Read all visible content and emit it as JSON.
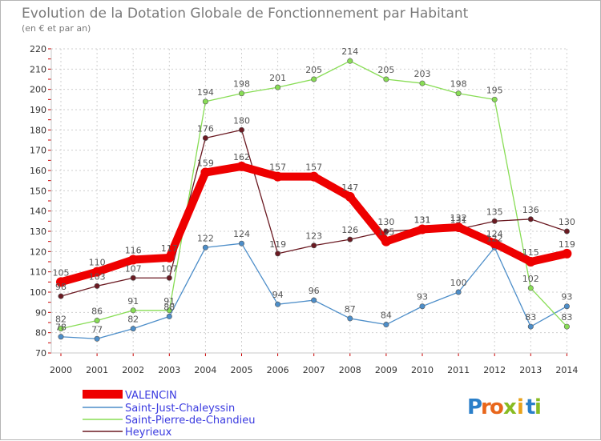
{
  "chart_data": {
    "type": "line",
    "title": "Evolution de la Dotation Globale de Fonctionnement par Habitant",
    "subtitle": "(en € et par an)",
    "x": [
      "2000",
      "2001",
      "2002",
      "2003",
      "2004",
      "2005",
      "2006",
      "2007",
      "2008",
      "2009",
      "2010",
      "2011",
      "2012",
      "2013",
      "2014"
    ],
    "ylim": [
      70,
      220
    ],
    "yticks": [
      70,
      80,
      90,
      100,
      110,
      120,
      130,
      140,
      150,
      160,
      170,
      180,
      190,
      200,
      210,
      220
    ],
    "grid": true,
    "legend_position": "bottom-left",
    "series": [
      {
        "name": "VALENCIN",
        "color": "#ee0000",
        "values": [
          105,
          110,
          116,
          117,
          159,
          162,
          157,
          157,
          147,
          125,
          131,
          132,
          124,
          115,
          119
        ],
        "labels": [
          "105",
          "110",
          "116",
          "117",
          "159",
          "162",
          "157",
          "157",
          "147",
          "125",
          "131",
          "132",
          "124",
          "115",
          "119"
        ]
      },
      {
        "name": "Saint-Just-Chaleyssin",
        "color": "#4d8ec9",
        "values": [
          78,
          77,
          82,
          88,
          122,
          124,
          94,
          96,
          87,
          84,
          93,
          100,
          122,
          83,
          93
        ],
        "labels": [
          "78",
          "77",
          "82",
          "88",
          "122",
          "124",
          "94",
          "96",
          "87",
          "84",
          "93",
          "100",
          "122",
          "83",
          "93"
        ]
      },
      {
        "name": "Saint-Pierre-de-Chandieu",
        "color": "#88dd55",
        "values": [
          82,
          86,
          91,
          91,
          194,
          198,
          201,
          205,
          214,
          205,
          203,
          198,
          195,
          102,
          83
        ],
        "labels": [
          "82",
          "86",
          "91",
          "91",
          "194",
          "198",
          "201",
          "205",
          "214",
          "205",
          "203",
          "198",
          "195",
          "102",
          "83"
        ]
      },
      {
        "name": "Heyrieux",
        "color": "#6b1a22",
        "values": [
          98,
          103,
          107,
          107,
          176,
          180,
          119,
          123,
          126,
          130,
          131,
          131,
          135,
          136,
          130
        ],
        "labels": [
          "98",
          "103",
          "107",
          "107",
          "176",
          "180",
          "119",
          "123",
          "126",
          "130",
          "131",
          "131",
          "135",
          "136",
          "130"
        ]
      }
    ]
  },
  "logo": {
    "letters": [
      "P",
      "r",
      "o",
      "x",
      "i",
      "t",
      "i"
    ],
    "colors": [
      "#2a7fc9",
      "#e8661b",
      "#e8661b",
      "#88bb22",
      "#e8a21b",
      "#2a7fc9",
      "#88bb22"
    ]
  }
}
